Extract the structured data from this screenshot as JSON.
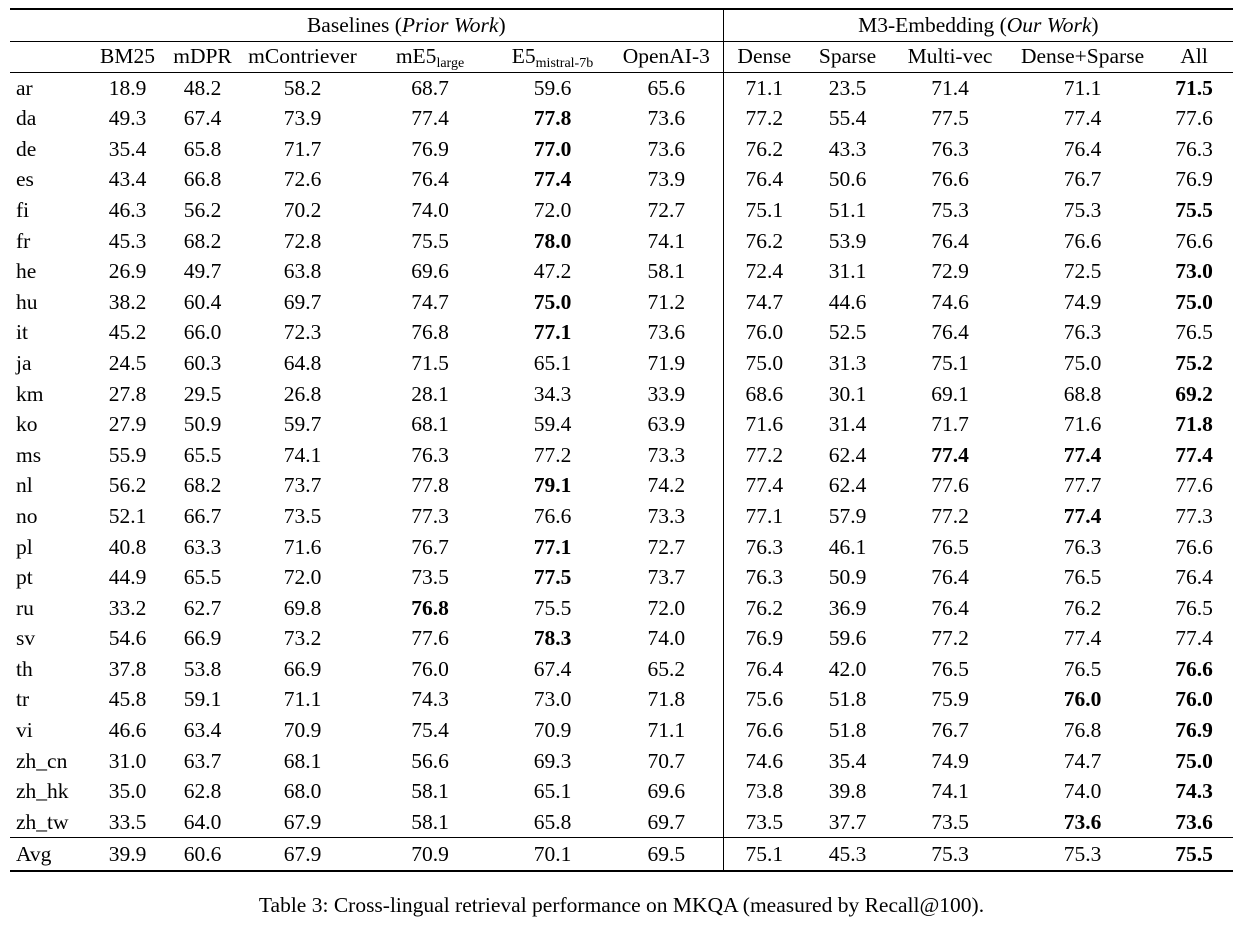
{
  "table": {
    "groups": [
      {
        "prefix": "Baselines (",
        "italic": "Prior Work",
        "suffix": ")"
      },
      {
        "prefix": "M3-Embedding (",
        "italic": "Our Work",
        "suffix": ")"
      }
    ],
    "columns": [
      {
        "text": "BM25"
      },
      {
        "text": "mDPR"
      },
      {
        "text": "mContriever"
      },
      {
        "text": "mE5",
        "sub": "large"
      },
      {
        "text": "E5",
        "sub": "mistral-7b"
      },
      {
        "text": "OpenAI-3"
      },
      {
        "text": "Dense"
      },
      {
        "text": "Sparse"
      },
      {
        "text": "Multi-vec"
      },
      {
        "text": "Dense+Sparse"
      },
      {
        "text": "All"
      }
    ],
    "rows": [
      {
        "label": "ar",
        "values": [
          "18.9",
          "48.2",
          "58.2",
          "68.7",
          "59.6",
          "65.6",
          "71.1",
          "23.5",
          "71.4",
          "71.1",
          "71.5"
        ],
        "bold": [
          10
        ]
      },
      {
        "label": "da",
        "values": [
          "49.3",
          "67.4",
          "73.9",
          "77.4",
          "77.8",
          "73.6",
          "77.2",
          "55.4",
          "77.5",
          "77.4",
          "77.6"
        ],
        "bold": [
          4
        ]
      },
      {
        "label": "de",
        "values": [
          "35.4",
          "65.8",
          "71.7",
          "76.9",
          "77.0",
          "73.6",
          "76.2",
          "43.3",
          "76.3",
          "76.4",
          "76.3"
        ],
        "bold": [
          4
        ]
      },
      {
        "label": "es",
        "values": [
          "43.4",
          "66.8",
          "72.6",
          "76.4",
          "77.4",
          "73.9",
          "76.4",
          "50.6",
          "76.6",
          "76.7",
          "76.9"
        ],
        "bold": [
          4
        ]
      },
      {
        "label": "fi",
        "values": [
          "46.3",
          "56.2",
          "70.2",
          "74.0",
          "72.0",
          "72.7",
          "75.1",
          "51.1",
          "75.3",
          "75.3",
          "75.5"
        ],
        "bold": [
          10
        ]
      },
      {
        "label": "fr",
        "values": [
          "45.3",
          "68.2",
          "72.8",
          "75.5",
          "78.0",
          "74.1",
          "76.2",
          "53.9",
          "76.4",
          "76.6",
          "76.6"
        ],
        "bold": [
          4
        ]
      },
      {
        "label": "he",
        "values": [
          "26.9",
          "49.7",
          "63.8",
          "69.6",
          "47.2",
          "58.1",
          "72.4",
          "31.1",
          "72.9",
          "72.5",
          "73.0"
        ],
        "bold": [
          10
        ]
      },
      {
        "label": "hu",
        "values": [
          "38.2",
          "60.4",
          "69.7",
          "74.7",
          "75.0",
          "71.2",
          "74.7",
          "44.6",
          "74.6",
          "74.9",
          "75.0"
        ],
        "bold": [
          4,
          10
        ]
      },
      {
        "label": "it",
        "values": [
          "45.2",
          "66.0",
          "72.3",
          "76.8",
          "77.1",
          "73.6",
          "76.0",
          "52.5",
          "76.4",
          "76.3",
          "76.5"
        ],
        "bold": [
          4
        ]
      },
      {
        "label": "ja",
        "values": [
          "24.5",
          "60.3",
          "64.8",
          "71.5",
          "65.1",
          "71.9",
          "75.0",
          "31.3",
          "75.1",
          "75.0",
          "75.2"
        ],
        "bold": [
          10
        ]
      },
      {
        "label": "km",
        "values": [
          "27.8",
          "29.5",
          "26.8",
          "28.1",
          "34.3",
          "33.9",
          "68.6",
          "30.1",
          "69.1",
          "68.8",
          "69.2"
        ],
        "bold": [
          10
        ]
      },
      {
        "label": "ko",
        "values": [
          "27.9",
          "50.9",
          "59.7",
          "68.1",
          "59.4",
          "63.9",
          "71.6",
          "31.4",
          "71.7",
          "71.6",
          "71.8"
        ],
        "bold": [
          10
        ]
      },
      {
        "label": "ms",
        "values": [
          "55.9",
          "65.5",
          "74.1",
          "76.3",
          "77.2",
          "73.3",
          "77.2",
          "62.4",
          "77.4",
          "77.4",
          "77.4"
        ],
        "bold": [
          8,
          9,
          10
        ]
      },
      {
        "label": "nl",
        "values": [
          "56.2",
          "68.2",
          "73.7",
          "77.8",
          "79.1",
          "74.2",
          "77.4",
          "62.4",
          "77.6",
          "77.7",
          "77.6"
        ],
        "bold": [
          4
        ]
      },
      {
        "label": "no",
        "values": [
          "52.1",
          "66.7",
          "73.5",
          "77.3",
          "76.6",
          "73.3",
          "77.1",
          "57.9",
          "77.2",
          "77.4",
          "77.3"
        ],
        "bold": [
          9
        ]
      },
      {
        "label": "pl",
        "values": [
          "40.8",
          "63.3",
          "71.6",
          "76.7",
          "77.1",
          "72.7",
          "76.3",
          "46.1",
          "76.5",
          "76.3",
          "76.6"
        ],
        "bold": [
          4
        ]
      },
      {
        "label": "pt",
        "values": [
          "44.9",
          "65.5",
          "72.0",
          "73.5",
          "77.5",
          "73.7",
          "76.3",
          "50.9",
          "76.4",
          "76.5",
          "76.4"
        ],
        "bold": [
          4
        ]
      },
      {
        "label": "ru",
        "values": [
          "33.2",
          "62.7",
          "69.8",
          "76.8",
          "75.5",
          "72.0",
          "76.2",
          "36.9",
          "76.4",
          "76.2",
          "76.5"
        ],
        "bold": [
          3
        ]
      },
      {
        "label": "sv",
        "values": [
          "54.6",
          "66.9",
          "73.2",
          "77.6",
          "78.3",
          "74.0",
          "76.9",
          "59.6",
          "77.2",
          "77.4",
          "77.4"
        ],
        "bold": [
          4
        ]
      },
      {
        "label": "th",
        "values": [
          "37.8",
          "53.8",
          "66.9",
          "76.0",
          "67.4",
          "65.2",
          "76.4",
          "42.0",
          "76.5",
          "76.5",
          "76.6"
        ],
        "bold": [
          10
        ]
      },
      {
        "label": "tr",
        "values": [
          "45.8",
          "59.1",
          "71.1",
          "74.3",
          "73.0",
          "71.8",
          "75.6",
          "51.8",
          "75.9",
          "76.0",
          "76.0"
        ],
        "bold": [
          9,
          10
        ]
      },
      {
        "label": "vi",
        "values": [
          "46.6",
          "63.4",
          "70.9",
          "75.4",
          "70.9",
          "71.1",
          "76.6",
          "51.8",
          "76.7",
          "76.8",
          "76.9"
        ],
        "bold": [
          10
        ]
      },
      {
        "label": "zh_cn",
        "values": [
          "31.0",
          "63.7",
          "68.1",
          "56.6",
          "69.3",
          "70.7",
          "74.6",
          "35.4",
          "74.9",
          "74.7",
          "75.0"
        ],
        "bold": [
          10
        ]
      },
      {
        "label": "zh_hk",
        "values": [
          "35.0",
          "62.8",
          "68.0",
          "58.1",
          "65.1",
          "69.6",
          "73.8",
          "39.8",
          "74.1",
          "74.0",
          "74.3"
        ],
        "bold": [
          10
        ]
      },
      {
        "label": "zh_tw",
        "values": [
          "33.5",
          "64.0",
          "67.9",
          "58.1",
          "65.8",
          "69.7",
          "73.5",
          "37.7",
          "73.5",
          "73.6",
          "73.6"
        ],
        "bold": [
          9,
          10
        ]
      }
    ],
    "avg_row": {
      "label": "Avg",
      "values": [
        "39.9",
        "60.6",
        "67.9",
        "70.9",
        "70.1",
        "69.5",
        "75.1",
        "45.3",
        "75.3",
        "75.3",
        "75.5"
      ],
      "bold": [
        10
      ]
    },
    "caption": "Table 3: Cross-lingual retrieval performance on MKQA (measured by Recall@100)."
  }
}
